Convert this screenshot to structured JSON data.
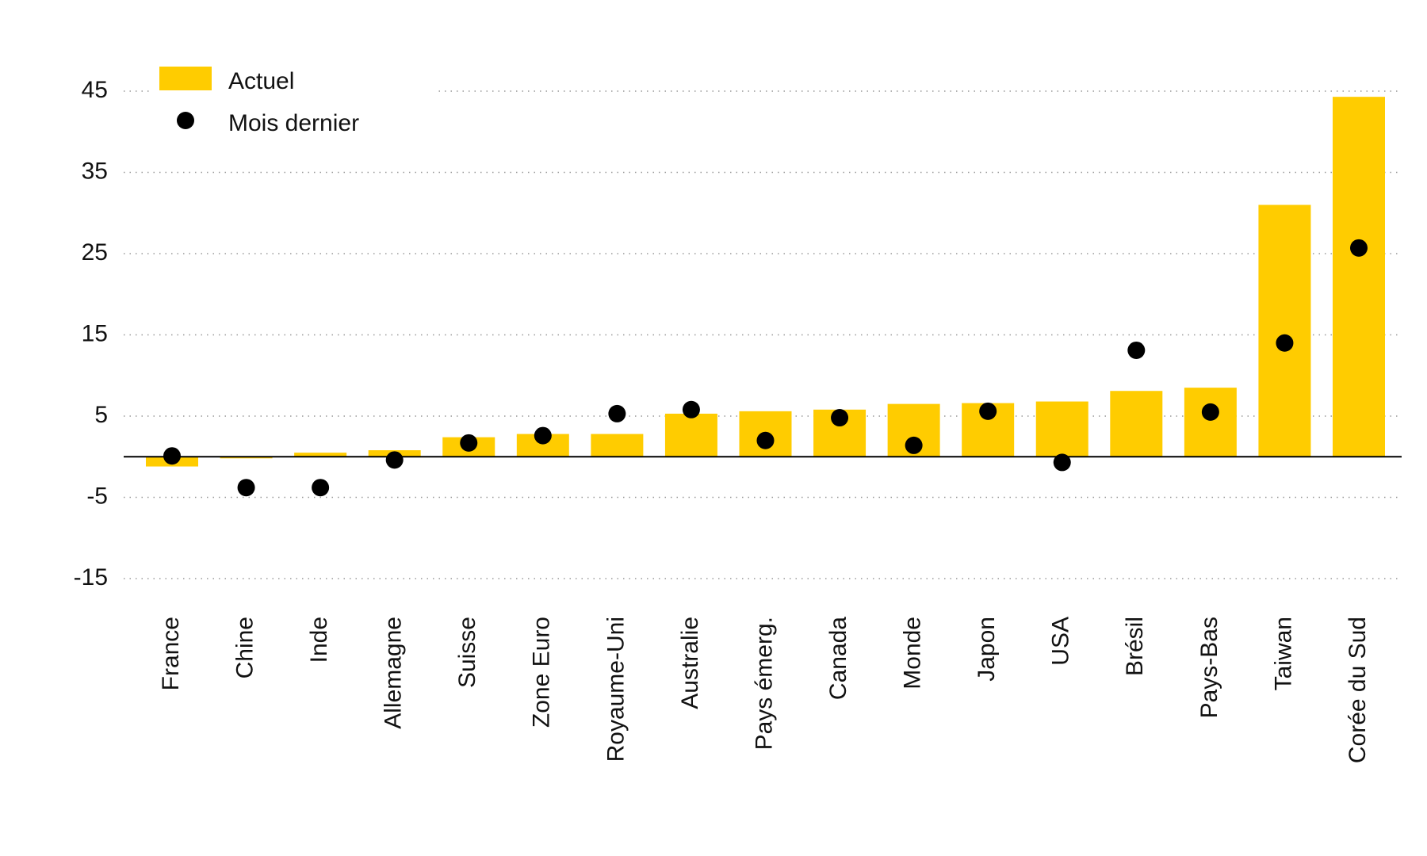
{
  "chart_data": {
    "type": "bar",
    "categories": [
      "France",
      "Chine",
      "Inde",
      "Allemagne",
      "Suisse",
      "Zone Euro",
      "Royaume-Uni",
      "Australie",
      "Pays émerg.",
      "Canada",
      "Monde",
      "Japon",
      "USA",
      "Brésil",
      "Pays-Bas",
      "Taiwan",
      "Corée du Sud"
    ],
    "series": [
      {
        "name": "Actuel",
        "color": "#ffcc00",
        "values": [
          -1.2,
          -0.2,
          0.5,
          0.8,
          2.4,
          2.8,
          2.8,
          5.3,
          5.6,
          5.8,
          6.5,
          6.6,
          6.8,
          8.1,
          8.5,
          31.0,
          44.3
        ]
      },
      {
        "name": "Mois dernier",
        "color": "#000000",
        "values": [
          0.1,
          -3.8,
          -3.8,
          -0.4,
          1.7,
          2.6,
          5.3,
          5.8,
          2.0,
          4.8,
          1.4,
          5.6,
          -0.7,
          13.1,
          5.5,
          14.0,
          25.7
        ]
      }
    ],
    "ylim": [
      -15,
      45
    ],
    "yticks": [
      45,
      35,
      25,
      15,
      5,
      -5,
      -15
    ],
    "grid": true
  }
}
